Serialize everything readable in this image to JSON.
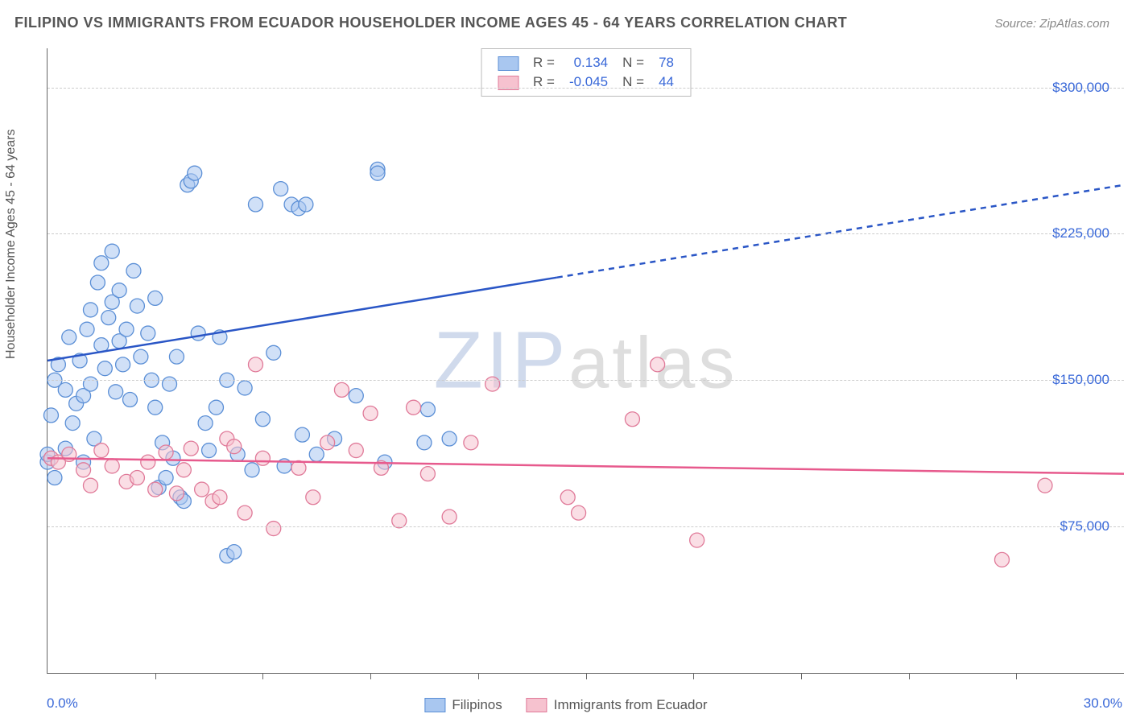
{
  "title": "FILIPINO VS IMMIGRANTS FROM ECUADOR HOUSEHOLDER INCOME AGES 45 - 64 YEARS CORRELATION CHART",
  "source": "Source: ZipAtlas.com",
  "watermark": {
    "z": "ZIP",
    "rest": "atlas"
  },
  "chart": {
    "type": "scatter",
    "xlim": [
      0,
      30
    ],
    "ylim": [
      0,
      320000
    ],
    "xticks_labeled": [
      {
        "v": 0,
        "label": "0.0%"
      },
      {
        "v": 30,
        "label": "30.0%"
      }
    ],
    "xticks_minor": [
      3,
      6,
      9,
      12,
      15,
      18,
      21,
      24,
      27
    ],
    "yticks": [
      {
        "v": 75000,
        "label": "$75,000"
      },
      {
        "v": 150000,
        "label": "$150,000"
      },
      {
        "v": 225000,
        "label": "$225,000"
      },
      {
        "v": 300000,
        "label": "$300,000"
      }
    ],
    "ylabel": "Householder Income Ages 45 - 64 years",
    "background_color": "#ffffff",
    "grid_color": "#cccccc",
    "marker_radius": 9,
    "marker_opacity": 0.55,
    "marker_stroke_width": 1.3,
    "line_width": 2.5,
    "series": [
      {
        "name": "Filipinos",
        "fill": "#a9c7f0",
        "stroke": "#5b8fd6",
        "line_color": "#2a56c6",
        "R": "0.134",
        "N": "78",
        "trend": {
          "x1": 0,
          "y1": 160000,
          "x2": 30,
          "y2": 250000,
          "solid_until_x": 14.2
        },
        "points": [
          [
            0.0,
            108000
          ],
          [
            0.0,
            112000
          ],
          [
            0.1,
            132000
          ],
          [
            0.2,
            100000
          ],
          [
            0.2,
            150000
          ],
          [
            0.3,
            158000
          ],
          [
            0.5,
            115000
          ],
          [
            0.5,
            145000
          ],
          [
            0.6,
            172000
          ],
          [
            0.7,
            128000
          ],
          [
            0.8,
            138000
          ],
          [
            0.9,
            160000
          ],
          [
            1.0,
            108000
          ],
          [
            1.0,
            142000
          ],
          [
            1.1,
            176000
          ],
          [
            1.2,
            186000
          ],
          [
            1.2,
            148000
          ],
          [
            1.3,
            120000
          ],
          [
            1.4,
            200000
          ],
          [
            1.5,
            210000
          ],
          [
            1.5,
            168000
          ],
          [
            1.6,
            156000
          ],
          [
            1.7,
            182000
          ],
          [
            1.8,
            190000
          ],
          [
            1.8,
            216000
          ],
          [
            1.9,
            144000
          ],
          [
            2.0,
            170000
          ],
          [
            2.0,
            196000
          ],
          [
            2.1,
            158000
          ],
          [
            2.2,
            176000
          ],
          [
            2.3,
            140000
          ],
          [
            2.4,
            206000
          ],
          [
            2.5,
            188000
          ],
          [
            2.6,
            162000
          ],
          [
            2.8,
            174000
          ],
          [
            2.9,
            150000
          ],
          [
            3.0,
            136000
          ],
          [
            3.0,
            192000
          ],
          [
            3.1,
            95000
          ],
          [
            3.2,
            118000
          ],
          [
            3.3,
            100000
          ],
          [
            3.4,
            148000
          ],
          [
            3.5,
            110000
          ],
          [
            3.6,
            162000
          ],
          [
            3.7,
            90000
          ],
          [
            3.8,
            88000
          ],
          [
            3.9,
            250000
          ],
          [
            4.0,
            252000
          ],
          [
            4.1,
            256000
          ],
          [
            4.2,
            174000
          ],
          [
            4.4,
            128000
          ],
          [
            4.5,
            114000
          ],
          [
            4.7,
            136000
          ],
          [
            4.8,
            172000
          ],
          [
            5.0,
            60000
          ],
          [
            5.0,
            150000
          ],
          [
            5.2,
            62000
          ],
          [
            5.3,
            112000
          ],
          [
            5.5,
            146000
          ],
          [
            5.7,
            104000
          ],
          [
            5.8,
            240000
          ],
          [
            6.0,
            130000
          ],
          [
            6.3,
            164000
          ],
          [
            6.5,
            248000
          ],
          [
            6.6,
            106000
          ],
          [
            6.8,
            240000
          ],
          [
            7.0,
            238000
          ],
          [
            7.1,
            122000
          ],
          [
            7.2,
            240000
          ],
          [
            7.5,
            112000
          ],
          [
            8.0,
            120000
          ],
          [
            8.6,
            142000
          ],
          [
            9.2,
            258000
          ],
          [
            9.2,
            256000
          ],
          [
            9.4,
            108000
          ],
          [
            10.5,
            118000
          ],
          [
            10.6,
            135000
          ],
          [
            11.2,
            120000
          ]
        ]
      },
      {
        "name": "Immigrants from Ecuador",
        "fill": "#f6c2cf",
        "stroke": "#e07a99",
        "line_color": "#e75a8d",
        "R": "-0.045",
        "N": "44",
        "trend": {
          "x1": 0,
          "y1": 110000,
          "x2": 30,
          "y2": 102000,
          "solid_until_x": 30
        },
        "points": [
          [
            0.1,
            110000
          ],
          [
            0.3,
            108000
          ],
          [
            0.6,
            112000
          ],
          [
            1.0,
            104000
          ],
          [
            1.2,
            96000
          ],
          [
            1.5,
            114000
          ],
          [
            1.8,
            106000
          ],
          [
            2.2,
            98000
          ],
          [
            2.5,
            100000
          ],
          [
            2.8,
            108000
          ],
          [
            3.0,
            94000
          ],
          [
            3.3,
            113000
          ],
          [
            3.6,
            92000
          ],
          [
            3.8,
            104000
          ],
          [
            4.0,
            115000
          ],
          [
            4.3,
            94000
          ],
          [
            4.6,
            88000
          ],
          [
            4.8,
            90000
          ],
          [
            5.0,
            120000
          ],
          [
            5.2,
            116000
          ],
          [
            5.5,
            82000
          ],
          [
            5.8,
            158000
          ],
          [
            6.0,
            110000
          ],
          [
            6.3,
            74000
          ],
          [
            7.0,
            105000
          ],
          [
            7.4,
            90000
          ],
          [
            7.8,
            118000
          ],
          [
            8.2,
            145000
          ],
          [
            8.6,
            114000
          ],
          [
            9.0,
            133000
          ],
          [
            9.3,
            105000
          ],
          [
            9.8,
            78000
          ],
          [
            10.2,
            136000
          ],
          [
            10.6,
            102000
          ],
          [
            11.2,
            80000
          ],
          [
            11.8,
            118000
          ],
          [
            12.4,
            148000
          ],
          [
            14.5,
            90000
          ],
          [
            14.8,
            82000
          ],
          [
            16.3,
            130000
          ],
          [
            17.0,
            158000
          ],
          [
            18.1,
            68000
          ],
          [
            26.6,
            58000
          ],
          [
            27.8,
            96000
          ]
        ]
      }
    ]
  },
  "legend_top_labels": {
    "R": "R =",
    "N": "N ="
  },
  "colors": {
    "axis_text": "#3968d8",
    "title_text": "#555555",
    "swatch_blue_fill": "#a9c7f0",
    "swatch_blue_border": "#5b8fd6",
    "swatch_pink_fill": "#f6c2cf",
    "swatch_pink_border": "#e07a99"
  }
}
